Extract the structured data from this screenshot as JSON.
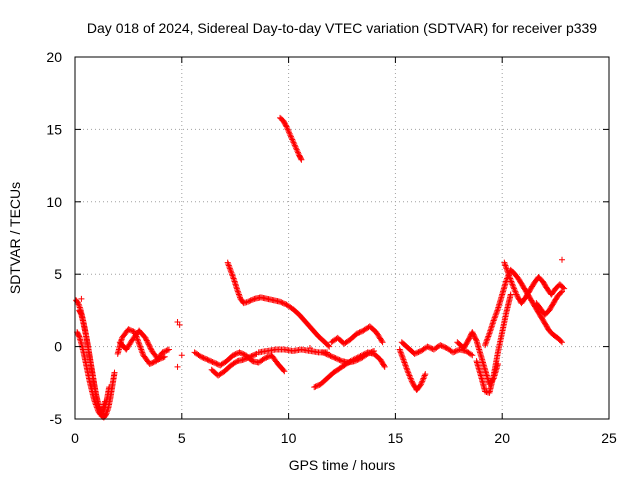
{
  "chart_data": {
    "type": "scatter",
    "title": "Day 018 of 2024, Sidereal Day-to-day VTEC variation (SDTVAR) for receiver p339",
    "xlabel": "GPS time / hours",
    "ylabel": "SDTVAR / TECUs",
    "xlim": [
      0,
      25
    ],
    "ylim": [
      -5,
      20
    ],
    "xticks": [
      0,
      5,
      10,
      15,
      20,
      25
    ],
    "yticks": [
      -5,
      0,
      5,
      10,
      15,
      20
    ],
    "grid": true,
    "marker": "+",
    "color": "#ff0000",
    "series": [
      {
        "name": "SDTVAR",
        "segments": [
          [
            [
              0.05,
              3.2
            ],
            [
              0.15,
              3.0
            ],
            [
              0.25,
              2.6
            ],
            [
              0.35,
              2.0
            ],
            [
              0.45,
              1.3
            ],
            [
              0.55,
              0.5
            ],
            [
              0.65,
              -0.4
            ],
            [
              0.75,
              -1.3
            ],
            [
              0.85,
              -2.2
            ],
            [
              0.95,
              -3.1
            ],
            [
              1.05,
              -3.8
            ],
            [
              1.15,
              -4.4
            ],
            [
              1.25,
              -4.8
            ],
            [
              1.35,
              -4.9
            ],
            [
              1.45,
              -4.7
            ],
            [
              1.55,
              -4.3
            ],
            [
              1.65,
              -3.6
            ],
            [
              1.75,
              -2.7
            ],
            [
              1.85,
              -1.8
            ]
          ],
          [
            [
              0.1,
              1.0
            ],
            [
              0.2,
              0.7
            ],
            [
              0.3,
              0.2
            ],
            [
              0.4,
              -0.4
            ],
            [
              0.5,
              -1.1
            ],
            [
              0.6,
              -1.8
            ],
            [
              0.7,
              -2.5
            ],
            [
              0.8,
              -3.1
            ],
            [
              0.9,
              -3.7
            ],
            [
              1.0,
              -4.1
            ],
            [
              1.1,
              -4.5
            ],
            [
              1.2,
              -4.7
            ],
            [
              1.3,
              -4.6
            ],
            [
              1.4,
              -4.2
            ],
            [
              1.5,
              -3.6
            ],
            [
              1.6,
              -2.8
            ]
          ],
          [
            [
              0.2,
              2.5
            ],
            [
              0.3,
              2.2
            ],
            [
              0.4,
              1.6
            ],
            [
              0.5,
              0.9
            ],
            [
              0.6,
              0.1
            ],
            [
              0.7,
              -0.8
            ],
            [
              0.8,
              -1.7
            ],
            [
              0.9,
              -2.6
            ],
            [
              1.0,
              -3.4
            ],
            [
              1.1,
              -4.0
            ],
            [
              1.2,
              -4.4
            ],
            [
              1.3,
              -4.3
            ],
            [
              1.4,
              -3.8
            ]
          ],
          [
            [
              2.0,
              -0.5
            ],
            [
              2.2,
              0.6
            ],
            [
              2.5,
              1.2
            ],
            [
              2.8,
              1.0
            ],
            [
              3.0,
              0.2
            ],
            [
              3.2,
              -0.6
            ],
            [
              3.5,
              -1.2
            ],
            [
              3.8,
              -1.0
            ],
            [
              4.1,
              -0.4
            ],
            [
              4.4,
              -0.2
            ]
          ],
          [
            [
              2.1,
              0.3
            ],
            [
              2.4,
              -0.2
            ],
            [
              2.7,
              0.5
            ],
            [
              3.0,
              1.1
            ],
            [
              3.3,
              0.6
            ],
            [
              3.6,
              -0.3
            ],
            [
              3.9,
              -0.9
            ],
            [
              4.2,
              -0.7
            ]
          ],
          [
            [
              5.6,
              -0.4
            ],
            [
              5.9,
              -0.7
            ],
            [
              6.2,
              -0.9
            ],
            [
              6.5,
              -1.1
            ],
            [
              6.8,
              -1.3
            ],
            [
              7.1,
              -1.0
            ],
            [
              7.4,
              -0.6
            ],
            [
              7.7,
              -0.4
            ],
            [
              8.0,
              -0.6
            ],
            [
              8.3,
              -1.0
            ],
            [
              8.6,
              -1.1
            ],
            [
              8.9,
              -0.8
            ],
            [
              9.2,
              -0.6
            ],
            [
              9.5,
              -1.2
            ],
            [
              9.8,
              -1.7
            ]
          ],
          [
            [
              6.4,
              -1.6
            ],
            [
              6.7,
              -2.0
            ],
            [
              7.0,
              -1.7
            ],
            [
              7.3,
              -1.3
            ],
            [
              7.6,
              -1.0
            ],
            [
              7.9,
              -0.9
            ],
            [
              8.2,
              -0.7
            ],
            [
              8.5,
              -0.5
            ]
          ],
          [
            [
              8.6,
              -0.4
            ],
            [
              9.0,
              -0.3
            ],
            [
              9.4,
              -0.2
            ],
            [
              9.8,
              -0.2
            ],
            [
              10.2,
              -0.3
            ],
            [
              10.6,
              -0.2
            ],
            [
              11.0,
              -0.3
            ],
            [
              11.4,
              -0.4
            ],
            [
              11.8,
              -0.4
            ]
          ],
          [
            [
              7.15,
              5.8
            ],
            [
              7.3,
              5.2
            ],
            [
              7.45,
              4.6
            ],
            [
              7.6,
              3.9
            ],
            [
              7.75,
              3.3
            ],
            [
              7.9,
              3.0
            ],
            [
              8.1,
              3.1
            ],
            [
              8.4,
              3.3
            ],
            [
              8.7,
              3.4
            ],
            [
              9.0,
              3.3
            ],
            [
              9.3,
              3.2
            ],
            [
              9.6,
              3.1
            ],
            [
              9.9,
              2.9
            ],
            [
              10.2,
              2.6
            ],
            [
              10.5,
              2.2
            ],
            [
              10.8,
              1.7
            ],
            [
              11.1,
              1.2
            ],
            [
              11.4,
              0.7
            ],
            [
              11.7,
              0.3
            ],
            [
              11.9,
              0.0
            ]
          ],
          [
            [
              9.6,
              15.8
            ],
            [
              9.75,
              15.6
            ],
            [
              9.9,
              15.2
            ],
            [
              10.05,
              14.7
            ],
            [
              10.2,
              14.2
            ],
            [
              10.35,
              13.7
            ],
            [
              10.5,
              13.2
            ],
            [
              10.6,
              12.9
            ]
          ],
          [
            [
              11.2,
              -2.8
            ],
            [
              11.5,
              -2.6
            ],
            [
              11.8,
              -2.2
            ],
            [
              12.1,
              -1.8
            ],
            [
              12.5,
              -1.4
            ],
            [
              12.9,
              -1.0
            ],
            [
              13.3,
              -0.7
            ],
            [
              13.7,
              -0.4
            ],
            [
              14.0,
              -0.5
            ],
            [
              14.3,
              -0.9
            ],
            [
              14.5,
              -1.4
            ]
          ],
          [
            [
              11.6,
              -0.4
            ],
            [
              11.9,
              -0.6
            ],
            [
              12.2,
              -0.8
            ],
            [
              12.5,
              -1.0
            ],
            [
              12.8,
              -1.1
            ],
            [
              13.1,
              -1.0
            ],
            [
              13.4,
              -0.8
            ],
            [
              13.7,
              -0.5
            ],
            [
              14.0,
              -0.3
            ]
          ],
          [
            [
              12.0,
              0.3
            ],
            [
              12.3,
              0.6
            ],
            [
              12.6,
              0.2
            ],
            [
              12.9,
              0.5
            ],
            [
              13.2,
              0.9
            ],
            [
              13.5,
              1.1
            ],
            [
              13.8,
              1.4
            ],
            [
              14.1,
              1.0
            ],
            [
              14.4,
              0.3
            ]
          ],
          [
            [
              15.2,
              -0.2
            ],
            [
              15.4,
              -1.0
            ],
            [
              15.6,
              -1.8
            ],
            [
              15.8,
              -2.5
            ],
            [
              16.0,
              -3.0
            ],
            [
              16.2,
              -2.6
            ],
            [
              16.4,
              -1.9
            ]
          ],
          [
            [
              15.3,
              0.3
            ],
            [
              15.6,
              -0.1
            ],
            [
              15.9,
              -0.5
            ],
            [
              16.2,
              -0.3
            ],
            [
              16.5,
              0.0
            ],
            [
              16.8,
              -0.2
            ],
            [
              17.1,
              0.1
            ],
            [
              17.4,
              -0.1
            ],
            [
              17.7,
              -0.4
            ],
            [
              18.0,
              -0.2
            ],
            [
              18.3,
              -0.3
            ],
            [
              18.6,
              -0.6
            ]
          ],
          [
            [
              17.9,
              0.3
            ],
            [
              18.2,
              -0.1
            ],
            [
              18.4,
              0.4
            ],
            [
              18.6,
              1.0
            ],
            [
              18.8,
              0.4
            ],
            [
              19.0,
              -0.6
            ],
            [
              19.2,
              -1.6
            ],
            [
              19.4,
              -2.6
            ],
            [
              19.6,
              -2.2
            ],
            [
              19.8,
              -1.2
            ]
          ],
          [
            [
              18.8,
              -1.0
            ],
            [
              19.0,
              -2.0
            ],
            [
              19.2,
              -3.1
            ],
            [
              19.4,
              -3.2
            ],
            [
              19.6,
              -2.0
            ],
            [
              19.8,
              -0.4
            ],
            [
              20.0,
              1.0
            ],
            [
              20.2,
              2.4
            ],
            [
              20.4,
              3.6
            ]
          ],
          [
            [
              19.2,
              0.1
            ],
            [
              19.4,
              0.9
            ],
            [
              19.6,
              1.8
            ],
            [
              19.8,
              2.6
            ],
            [
              20.0,
              3.6
            ],
            [
              20.2,
              4.6
            ],
            [
              20.4,
              5.3
            ],
            [
              20.6,
              5.0
            ],
            [
              20.8,
              4.6
            ],
            [
              21.0,
              4.1
            ],
            [
              21.2,
              3.6
            ],
            [
              21.4,
              3.1
            ],
            [
              21.6,
              2.6
            ],
            [
              21.8,
              2.1
            ],
            [
              22.0,
              1.6
            ],
            [
              22.2,
              1.1
            ],
            [
              22.4,
              0.8
            ],
            [
              22.6,
              0.6
            ],
            [
              22.8,
              0.3
            ]
          ],
          [
            [
              20.1,
              5.8
            ],
            [
              20.3,
              5.0
            ],
            [
              20.5,
              4.2
            ],
            [
              20.7,
              3.5
            ],
            [
              20.9,
              3.0
            ],
            [
              21.1,
              3.4
            ],
            [
              21.3,
              3.9
            ],
            [
              21.5,
              4.4
            ],
            [
              21.7,
              4.8
            ],
            [
              21.9,
              4.5
            ],
            [
              22.1,
              4.0
            ],
            [
              22.3,
              3.6
            ],
            [
              22.5,
              4.0
            ],
            [
              22.7,
              4.3
            ],
            [
              22.9,
              4.0
            ]
          ],
          [
            [
              21.6,
              3.0
            ],
            [
              21.8,
              2.6
            ],
            [
              22.0,
              2.2
            ],
            [
              22.2,
              2.5
            ],
            [
              22.4,
              3.0
            ],
            [
              22.6,
              3.5
            ],
            [
              22.8,
              3.8
            ]
          ]
        ],
        "points": [
          [
            4.8,
            1.7
          ],
          [
            4.9,
            1.5
          ],
          [
            5.0,
            -0.6
          ],
          [
            4.8,
            -1.4
          ],
          [
            22.8,
            6.0
          ],
          [
            0.3,
            3.3
          ],
          [
            11.0,
            -0.1
          ]
        ]
      }
    ]
  }
}
